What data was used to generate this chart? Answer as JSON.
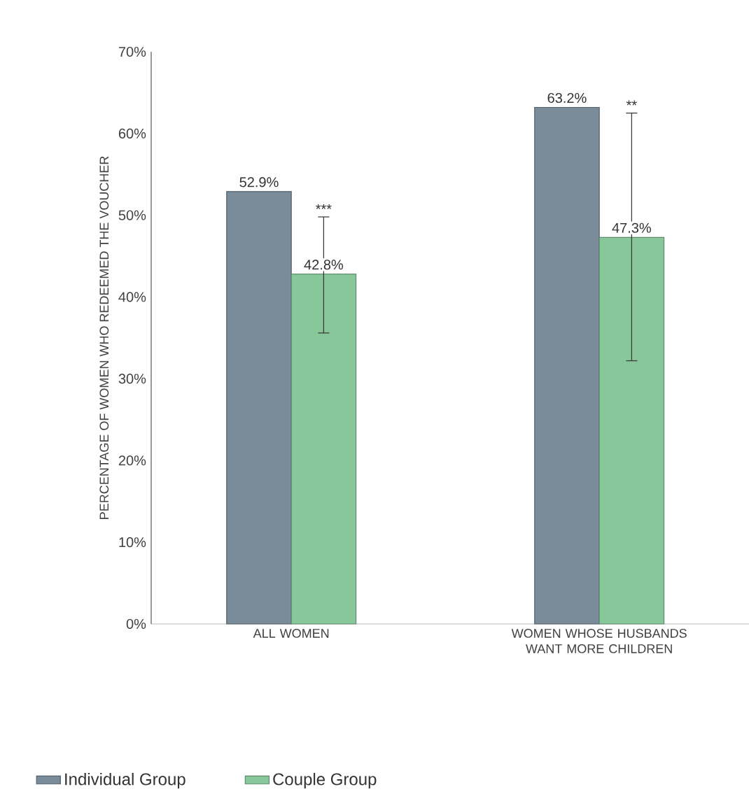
{
  "chart_data": {
    "type": "bar",
    "ylabel": "PERCENTAGE OF WOMEN WHO REDEEMED THE VOUCHER",
    "categories": [
      "ALL WOMEN",
      "WOMEN WHOSE HUSBANDS WANT MORE CHILDREN"
    ],
    "series": [
      {
        "name": "Individual Group",
        "color": "#7a8c99",
        "values": [
          52.9,
          63.2
        ],
        "value_labels": [
          "52.9%",
          "63.2%"
        ]
      },
      {
        "name": "Couple Group",
        "color": "#88c79a",
        "values": [
          42.8,
          47.3
        ],
        "value_labels": [
          "42.8%",
          "47.3%"
        ],
        "errors": [
          [
            35.6,
            49.8
          ],
          [
            32.2,
            62.5
          ]
        ]
      }
    ],
    "ylim": [
      0,
      70
    ],
    "yticks": [
      {
        "value": 0,
        "label": "0%"
      },
      {
        "value": 10,
        "label": "10%"
      },
      {
        "value": 20,
        "label": "20%"
      },
      {
        "value": 30,
        "label": "30%"
      },
      {
        "value": 40,
        "label": "40%"
      },
      {
        "value": 50,
        "label": "50%"
      },
      {
        "value": 60,
        "label": "60%"
      },
      {
        "value": 70,
        "label": "70%"
      }
    ],
    "annotations": [
      "***",
      "**"
    ],
    "legend": "bottom"
  }
}
